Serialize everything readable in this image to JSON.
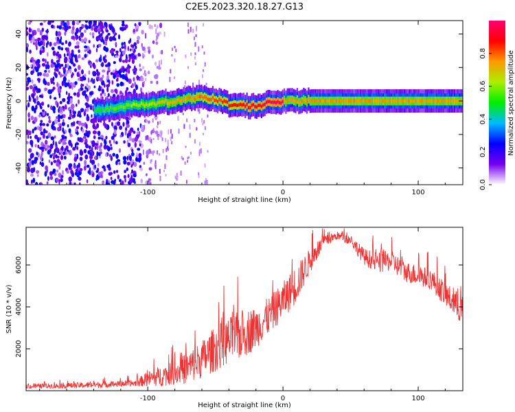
{
  "title": "C2E5.2023.320.18.27.G13",
  "chart_data": [
    {
      "type": "heatmap",
      "panel": "top",
      "xlabel": "Height of straight line (km)",
      "ylabel": "Frequency (Hz)",
      "xlim": [
        -190,
        133
      ],
      "ylim": [
        -50,
        48
      ],
      "xticks": [
        -100,
        0,
        100
      ],
      "xtick_labels": [
        "-100",
        "0",
        "100"
      ],
      "yticks": [
        -40,
        -20,
        0,
        20,
        40
      ],
      "ytick_labels": [
        "-40",
        "-20",
        "0",
        "20",
        "40"
      ],
      "colorbar": {
        "label": "Normalized spectral amplitude",
        "range": [
          0,
          1
        ],
        "ticks": [
          0.0,
          0.2,
          0.4,
          0.6,
          0.8
        ],
        "tick_labels": [
          "0.0",
          "0.2",
          "0.4",
          "0.6",
          "0.8"
        ],
        "colormap": "rainbow",
        "stops": [
          "#ffffff",
          "#7700ee",
          "#0000ff",
          "#00bbff",
          "#00ee00",
          "#aaee00",
          "#ff9900",
          "#ff0000",
          "#ff0077"
        ]
      },
      "ridge": {
        "x": [
          -140,
          -130,
          -120,
          -110,
          -100,
          -90,
          -80,
          -70,
          -60,
          -50,
          -40,
          -30,
          -20,
          -10,
          0,
          10,
          20,
          40,
          60,
          80,
          100,
          120,
          133
        ],
        "frequency": [
          -6,
          -5,
          -4,
          -2,
          -2,
          -1,
          0,
          2,
          2,
          1,
          -2,
          -3,
          -3,
          -1,
          0,
          0,
          0,
          0,
          0,
          0,
          0,
          0,
          0
        ]
      },
      "noise_region": [
        -190,
        -105
      ]
    },
    {
      "type": "line",
      "panel": "bottom",
      "xlabel": "Height of straight line (km)",
      "ylabel": "SNR (10 * v/v)",
      "xlim": [
        -190,
        133
      ],
      "ylim": [
        0,
        7800
      ],
      "xticks": [
        -100,
        0,
        100
      ],
      "xtick_labels": [
        "-100",
        "0",
        "100"
      ],
      "yticks": [
        2000,
        4000,
        6000
      ],
      "ytick_labels": [
        "2000",
        "4000",
        "6000"
      ],
      "series": [
        {
          "name": "SNR",
          "color": "#ee3333",
          "x": [
            -190,
            -150,
            -110,
            -100,
            -90,
            -80,
            -70,
            -60,
            -50,
            -40,
            -30,
            -20,
            -10,
            0,
            10,
            20,
            30,
            40,
            50,
            60,
            70,
            80,
            90,
            100,
            110,
            120,
            133
          ],
          "mean": [
            200,
            250,
            350,
            550,
            700,
            850,
            1100,
            1500,
            2000,
            2400,
            2700,
            3000,
            3600,
            4300,
            5100,
            6200,
            7100,
            7400,
            7200,
            6400,
            6100,
            6200,
            5700,
            5500,
            5300,
            4600,
            3800
          ],
          "spread": [
            120,
            140,
            150,
            350,
            500,
            550,
            800,
            900,
            1100,
            1100,
            1200,
            1000,
            900,
            900,
            900,
            600,
            300,
            200,
            250,
            400,
            500,
            500,
            500,
            500,
            500,
            600,
            700
          ]
        }
      ]
    }
  ]
}
